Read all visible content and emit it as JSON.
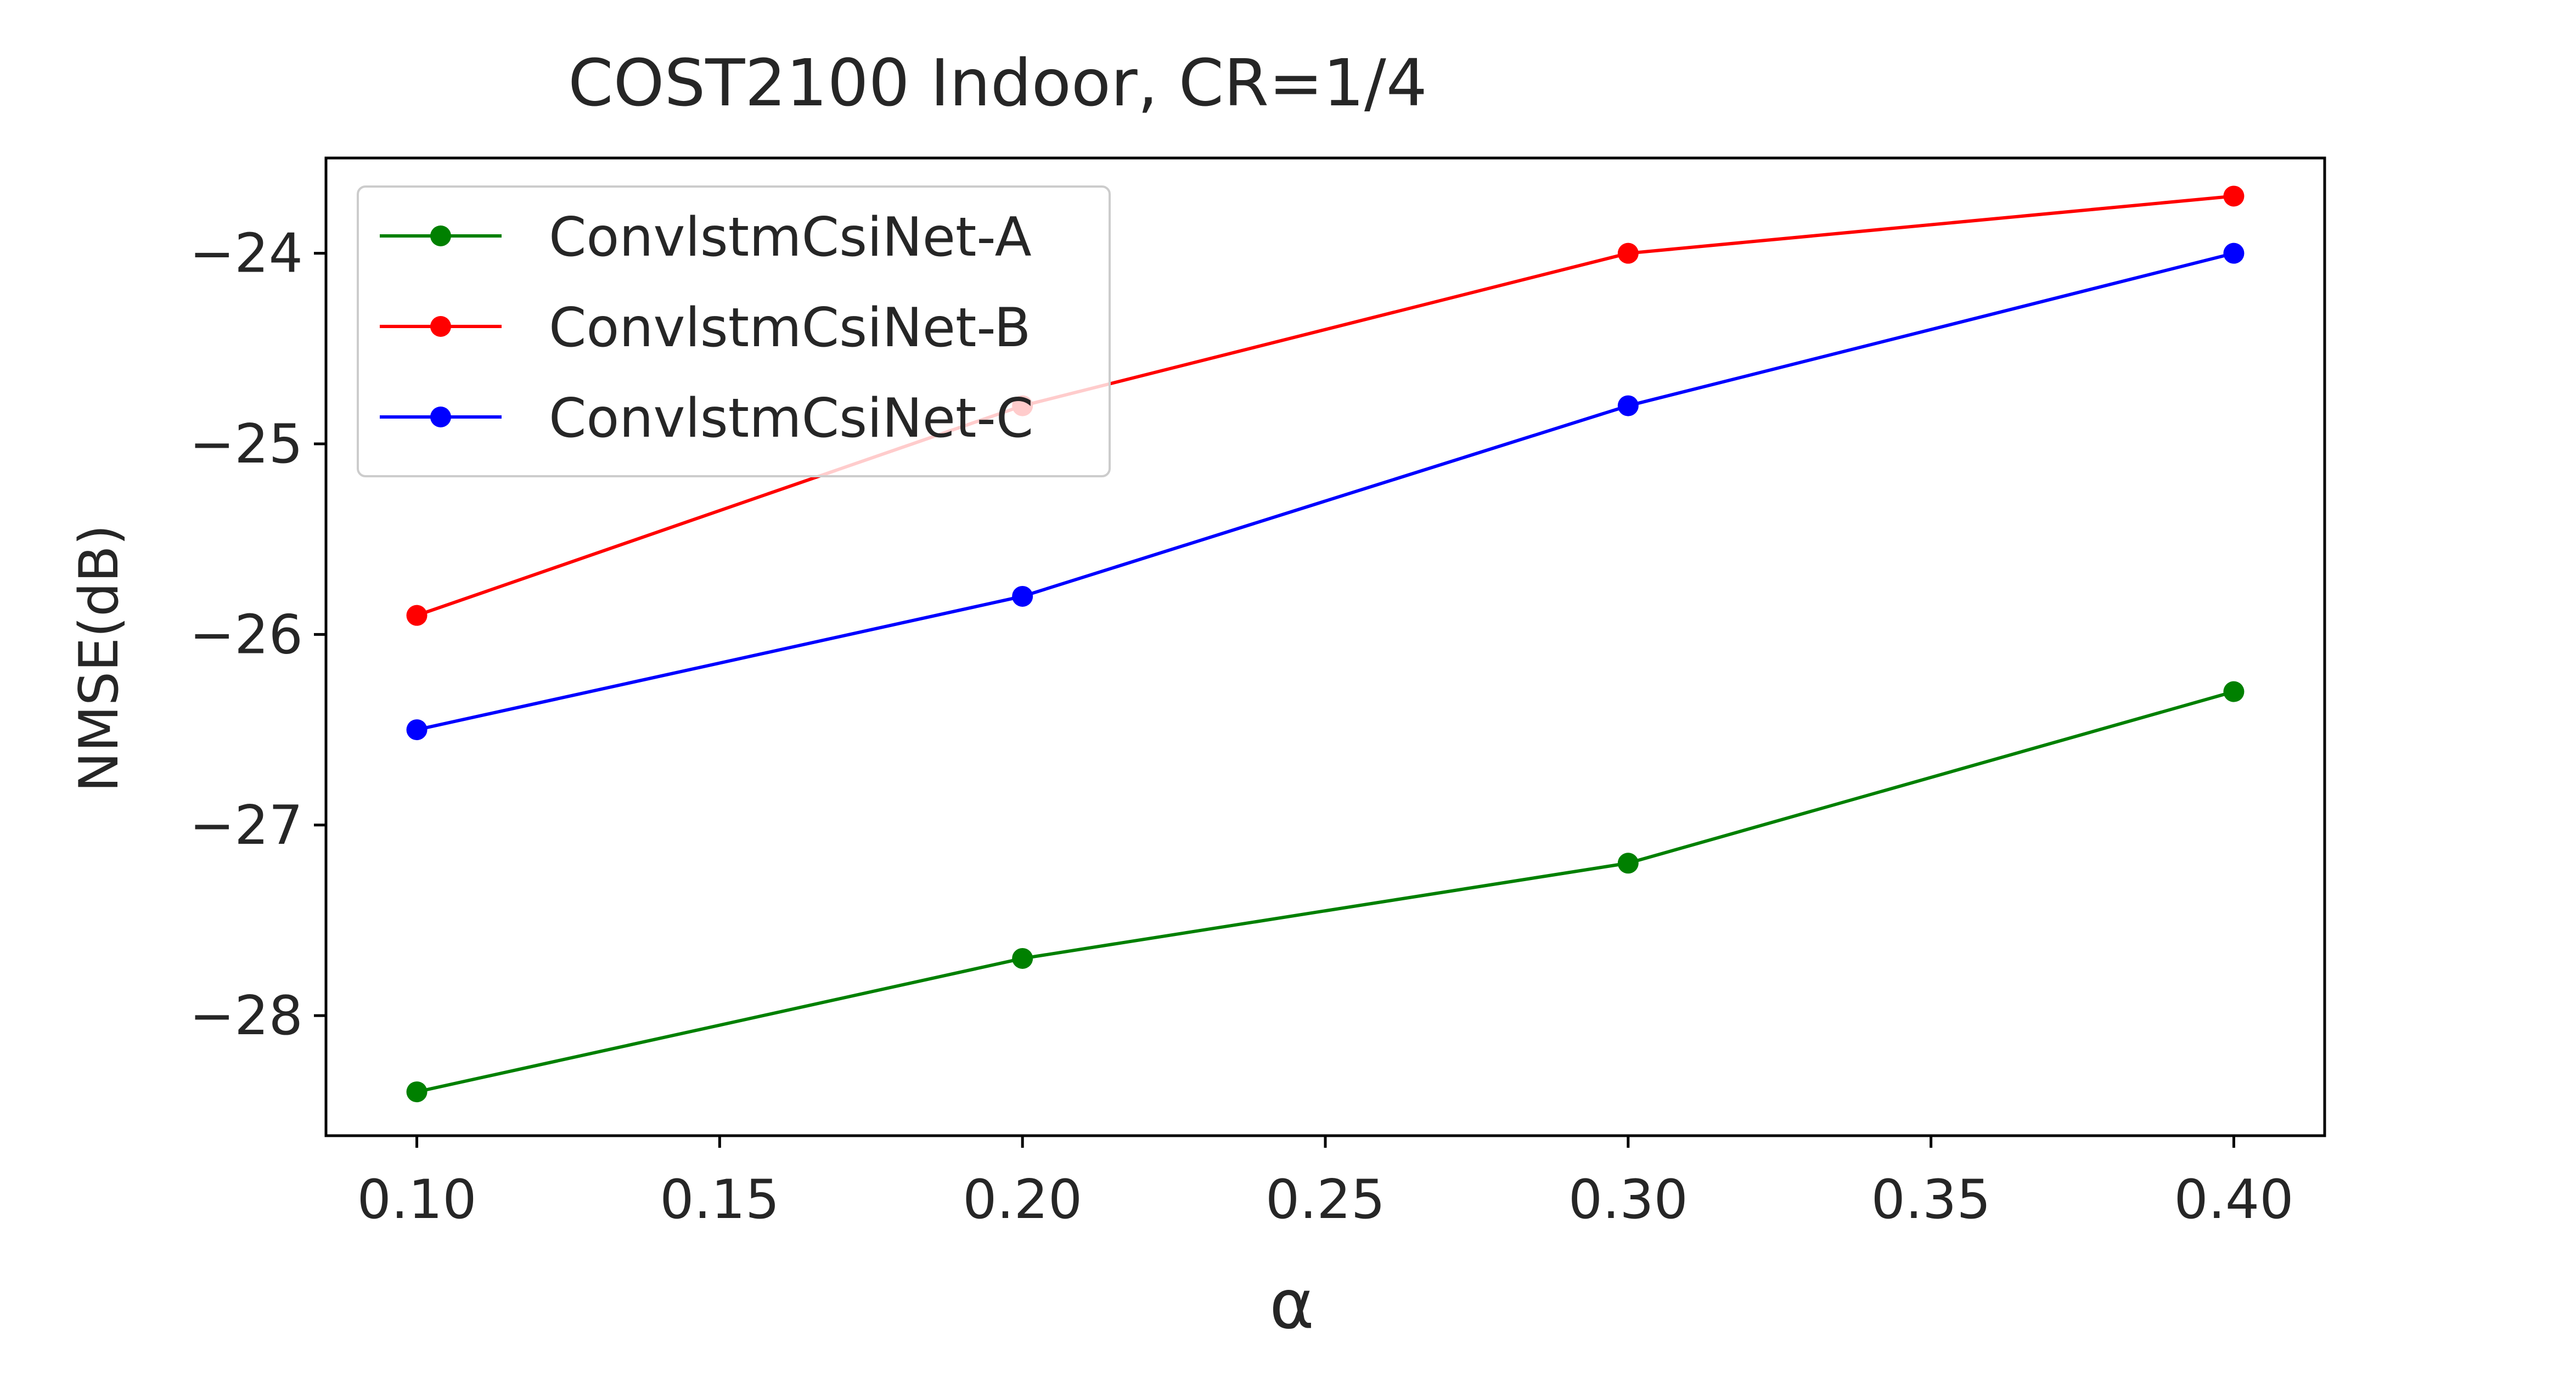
{
  "chart_data": {
    "type": "line",
    "title": "COST2100 Indoor, CR=1/4",
    "xlabel": "α",
    "ylabel": "NMSE(dB)",
    "x": [
      0.1,
      0.2,
      0.3,
      0.4
    ],
    "xlim": [
      0.085,
      0.415
    ],
    "ylim": [
      -28.63,
      -23.5
    ],
    "xticks": [
      0.1,
      0.15,
      0.2,
      0.25,
      0.3,
      0.35,
      0.4
    ],
    "xtick_labels": [
      "0.10",
      "0.15",
      "0.20",
      "0.25",
      "0.30",
      "0.35",
      "0.40"
    ],
    "yticks": [
      -24,
      -25,
      -26,
      -27,
      -28
    ],
    "ytick_labels": [
      "−24",
      "−25",
      "−26",
      "−27",
      "−28"
    ],
    "grid": false,
    "legend_position": "upper-left",
    "series": [
      {
        "name": "ConvlstmCsiNet-A",
        "color": "#008000",
        "values": [
          -28.4,
          -27.7,
          -27.2,
          -26.3
        ]
      },
      {
        "name": "ConvlstmCsiNet-B",
        "color": "#ff0000",
        "values": [
          -25.9,
          -24.8,
          -24.0,
          -23.7
        ]
      },
      {
        "name": "ConvlstmCsiNet-C",
        "color": "#0000ff",
        "values": [
          -26.5,
          -25.8,
          -24.8,
          -24.0
        ]
      }
    ]
  }
}
